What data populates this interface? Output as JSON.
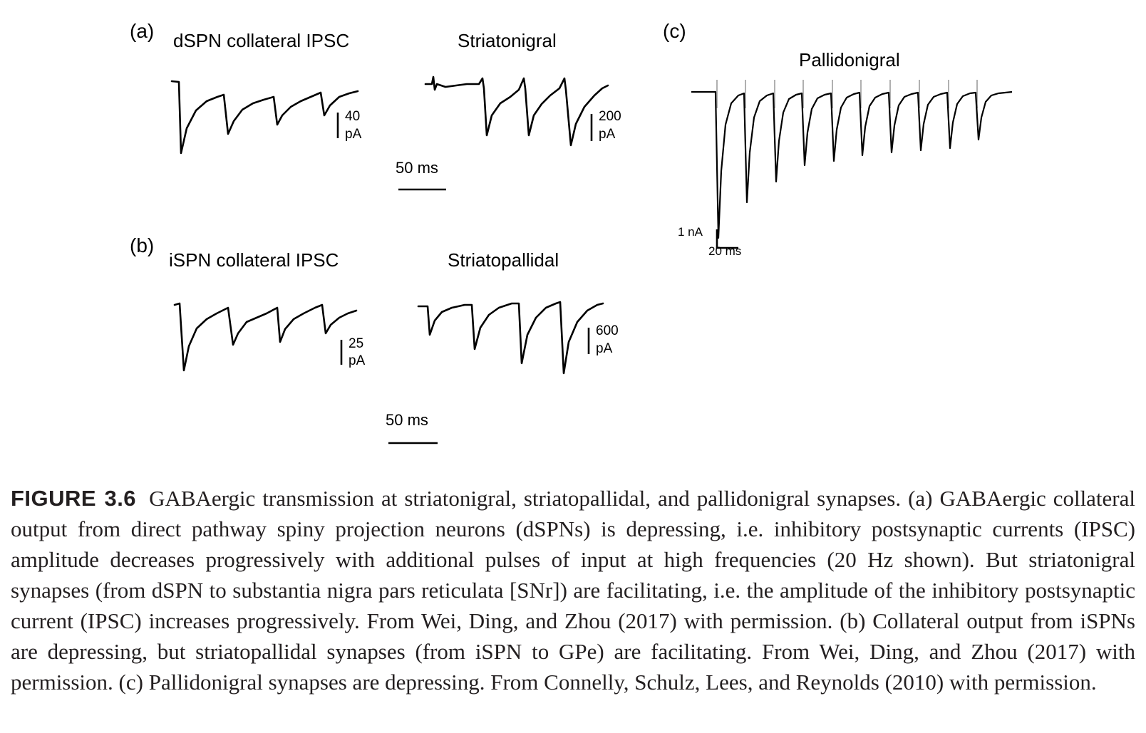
{
  "figure": {
    "panels": {
      "a": {
        "letter": "(a)",
        "left_title": "dSPN collateral IPSC",
        "right_title": "Striatonigral",
        "left_scale": [
          "40",
          "pA"
        ],
        "right_scale": [
          "200",
          "pA"
        ],
        "time_scale": "50 ms"
      },
      "b": {
        "letter": "(b)",
        "left_title": "iSPN collateral IPSC",
        "right_title": "Striatopallidal",
        "left_scale": [
          "25",
          "pA"
        ],
        "right_scale": [
          "600",
          "pA"
        ],
        "time_scale": "50 ms"
      },
      "c": {
        "letter": "(c)",
        "title": "Pallidonigral",
        "amp_scale": "1 nA",
        "time_scale": "20 ms"
      }
    },
    "trace_colors": {
      "trace": "#000000",
      "stimulus_artifact": "#b0b0b0"
    }
  },
  "caption": {
    "label": "FIGURE 3.6",
    "text": "GABAergic transmission at striatonigral, striatopallidal, and pallidonigral synapses. (a) GABAergic collateral output from direct pathway spiny projection neurons (dSPNs) is depressing, i.e. inhibitory postsynaptic currents (IPSC) amplitude decreases progressively with additional pulses of input at high frequencies (20 Hz shown). But striatonigral synapses (from dSPN to substantia nigra pars reticulata [SNr]) are facilitating, i.e. the amplitude of the inhibitory postsynaptic current (IPSC) increases progressively. From Wei, Ding, and Zhou (2017) with permission. (b) Collateral output from iSPNs are depressing, but striatopallidal synapses (from iSPN to GPe) are facilitating. From Wei, Ding, and Zhou (2017) with permission. (c) Pallidonigral synapses are depressing. From Connelly, Schulz, Lees, and Reynolds (2010) with permission."
  }
}
